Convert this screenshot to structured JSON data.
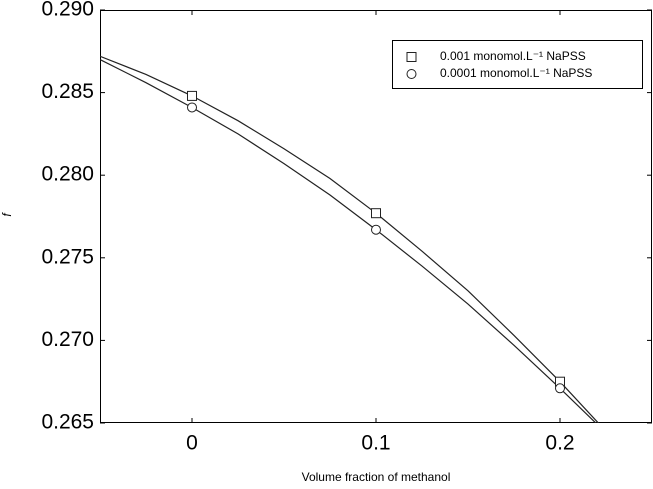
{
  "chart_data": {
    "type": "scatter",
    "xlabel": "Volume fraction of methanol",
    "ylabel": "f",
    "xlim": [
      -0.05,
      0.25
    ],
    "xticks": [
      0,
      0.1,
      0.2
    ],
    "ylim": [
      0.265,
      0.29
    ],
    "yticks": [
      0.265,
      {
        "value": 0.27,
        "label": "0.270"
      },
      0.275,
      {
        "value": 0.28,
        "label": "0.280"
      },
      0.285,
      {
        "value": 0.29,
        "label": "0.290"
      }
    ],
    "legend": "upper right",
    "series": [
      {
        "name": "0.001 monomol.L⁻¹ NaPSS",
        "marker": "square",
        "color": "#222222",
        "x": [
          0,
          0.1,
          0.2
        ],
        "values": [
          0.2848,
          0.2777,
          0.2675
        ]
      },
      {
        "name": "0.0001 monomol.L⁻¹ NaPSS",
        "marker": "circle",
        "color": "#222222",
        "x": [
          0,
          0.1,
          0.2
        ],
        "values": [
          0.2841,
          0.2767,
          0.2671
        ]
      }
    ],
    "fits": [
      {
        "color": "#222222",
        "x": [
          -0.05,
          -0.025,
          0,
          0.025,
          0.05,
          0.075,
          0.1,
          0.125,
          0.15,
          0.175,
          0.2,
          0.225
        ],
        "values": [
          0.2872,
          0.2861,
          0.2848,
          0.2833,
          0.2816,
          0.2798,
          0.2777,
          0.2754,
          0.273,
          0.2703,
          0.2675,
          0.2645
        ]
      },
      {
        "color": "#222222",
        "x": [
          -0.05,
          -0.025,
          0,
          0.025,
          0.05,
          0.075,
          0.1,
          0.125,
          0.15,
          0.175,
          0.2,
          0.225
        ],
        "values": [
          0.287,
          0.2856,
          0.2841,
          0.2825,
          0.2807,
          0.2788,
          0.2767,
          0.2745,
          0.2722,
          0.2697,
          0.2671,
          0.2644
        ]
      }
    ]
  }
}
